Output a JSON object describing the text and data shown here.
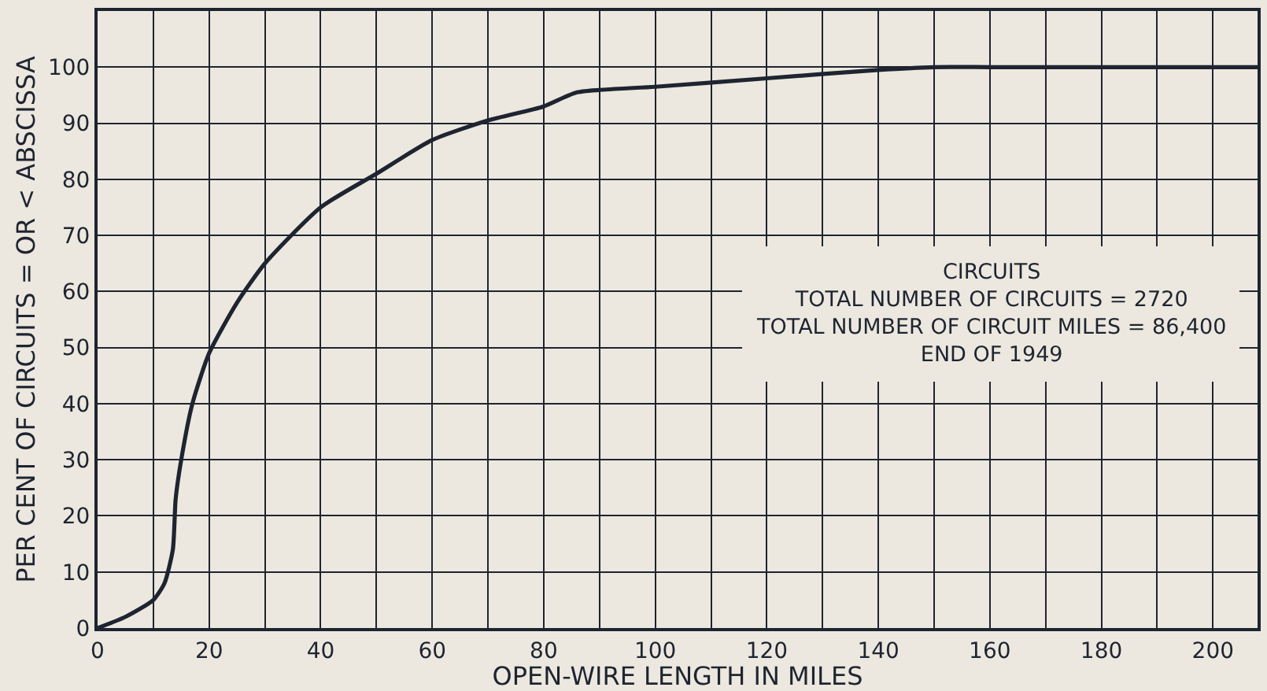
{
  "chart_data": {
    "type": "line",
    "xlabel": "OPEN-WIRE LENGTH IN MILES",
    "ylabel": "PER CENT OF CIRCUITS = OR < ABSCISSA",
    "x": [
      0,
      5,
      10,
      12,
      13.5,
      14,
      15,
      17,
      20,
      25,
      30,
      40,
      50,
      60,
      70,
      80,
      86,
      100,
      120,
      140,
      150,
      160,
      180,
      200,
      208
    ],
    "series": [
      {
        "color": "#1e2430",
        "values": [
          0,
          2,
          5,
          8,
          14,
          23,
          30,
          40,
          49,
          58,
          65,
          75,
          81,
          87,
          90.5,
          93,
          95.5,
          96.5,
          98,
          99.5,
          100,
          100,
          100,
          100,
          100
        ]
      }
    ],
    "xlim": [
      0,
      208
    ],
    "xticks": [
      0,
      20,
      40,
      60,
      80,
      100,
      120,
      140,
      160,
      180,
      200
    ],
    "ylim": [
      0,
      110
    ],
    "yticks": [
      0,
      10,
      20,
      30,
      40,
      50,
      60,
      70,
      80,
      90,
      100
    ],
    "grid": true,
    "legend": false,
    "marker": "none",
    "line_style": "solid",
    "annotations": [
      "CIRCUITS\nTOTAL NUMBER OF CIRCUITS = 2720\nTOTAL NUMBER OF CIRCUIT MILES = 86,400\nEND OF 1949"
    ]
  }
}
